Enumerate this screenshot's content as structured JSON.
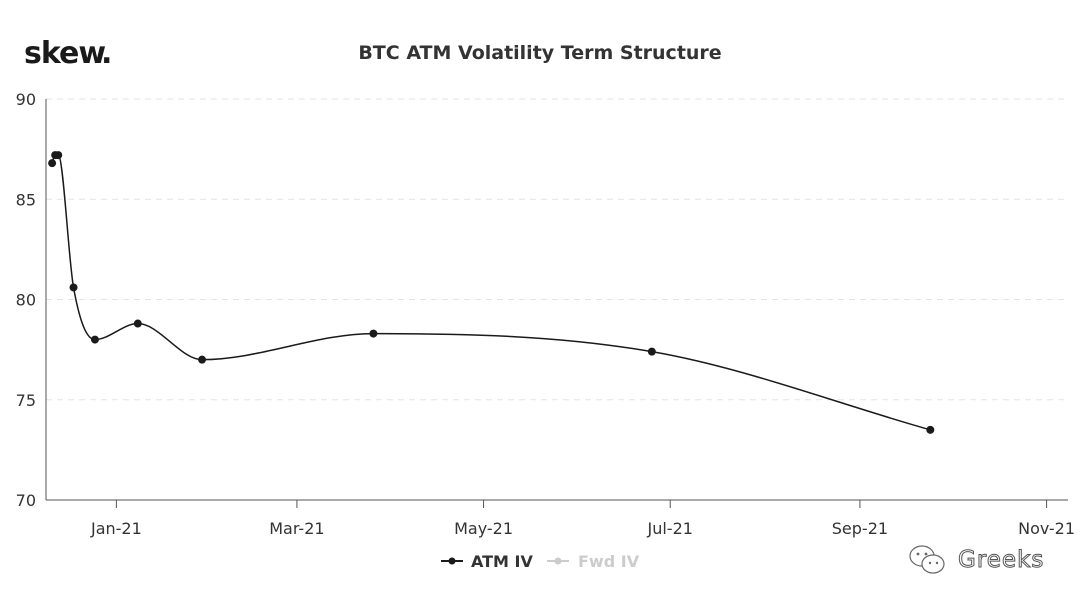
{
  "logo": {
    "text": "skew",
    "dot": ".",
    "dot_color": "#e8b730"
  },
  "watermark": {
    "text": "Greeks",
    "icon": "wechat-icon"
  },
  "colors": {
    "series": "#1a1a1a",
    "inactive": "#cccccc",
    "grid": "#e3e3e3",
    "axis": "#555555"
  },
  "chart_data": {
    "type": "line",
    "title": "BTC ATM Volatility Term Structure",
    "xlabel": "",
    "ylabel": "",
    "x_type": "date",
    "xlim": [
      "2020-12-09",
      "2021-11-08"
    ],
    "ylim": [
      70,
      90
    ],
    "yticks": [
      70,
      75,
      80,
      85,
      90
    ],
    "xticks": [
      {
        "date": "2021-01-01",
        "label": "Jan-21"
      },
      {
        "date": "2021-03-01",
        "label": "Mar-21"
      },
      {
        "date": "2021-05-01",
        "label": "May-21"
      },
      {
        "date": "2021-07-01",
        "label": "Jul-21"
      },
      {
        "date": "2021-09-01",
        "label": "Sep-21"
      },
      {
        "date": "2021-11-01",
        "label": "Nov-21"
      }
    ],
    "grid": {
      "horizontal": true,
      "vertical": false,
      "style": "dashed"
    },
    "legend_position": "bottom-center",
    "series": [
      {
        "name": "ATM IV",
        "active": true,
        "points": [
          {
            "x": "2020-12-11",
            "y": 86.8
          },
          {
            "x": "2020-12-12",
            "y": 87.2
          },
          {
            "x": "2020-12-13",
            "y": 87.2
          },
          {
            "x": "2020-12-18",
            "y": 80.6
          },
          {
            "x": "2020-12-25",
            "y": 78.0
          },
          {
            "x": "2021-01-08",
            "y": 78.8
          },
          {
            "x": "2021-01-29",
            "y": 77.0
          },
          {
            "x": "2021-03-26",
            "y": 78.3
          },
          {
            "x": "2021-06-25",
            "y": 77.4
          },
          {
            "x": "2021-09-24",
            "y": 73.5
          }
        ]
      },
      {
        "name": "Fwd IV",
        "active": false,
        "points": []
      }
    ]
  }
}
